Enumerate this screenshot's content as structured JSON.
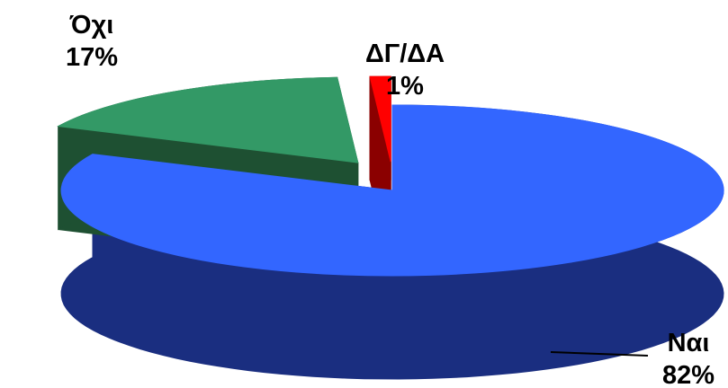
{
  "chart_data": {
    "type": "pie",
    "style": "3d-exploded",
    "slices": [
      {
        "label": "Ναι",
        "value": 82,
        "value_label": "82%",
        "color": "#3366FF",
        "side_color": "#1A2E80"
      },
      {
        "label": "Όχι",
        "value": 17,
        "value_label": "17%",
        "color": "#339966",
        "side_color": "#1E5032"
      },
      {
        "label": "ΔΓ/ΔΑ",
        "value": 1,
        "value_label": "1%",
        "color": "#FF0000",
        "side_color": "#8B0000"
      }
    ]
  }
}
